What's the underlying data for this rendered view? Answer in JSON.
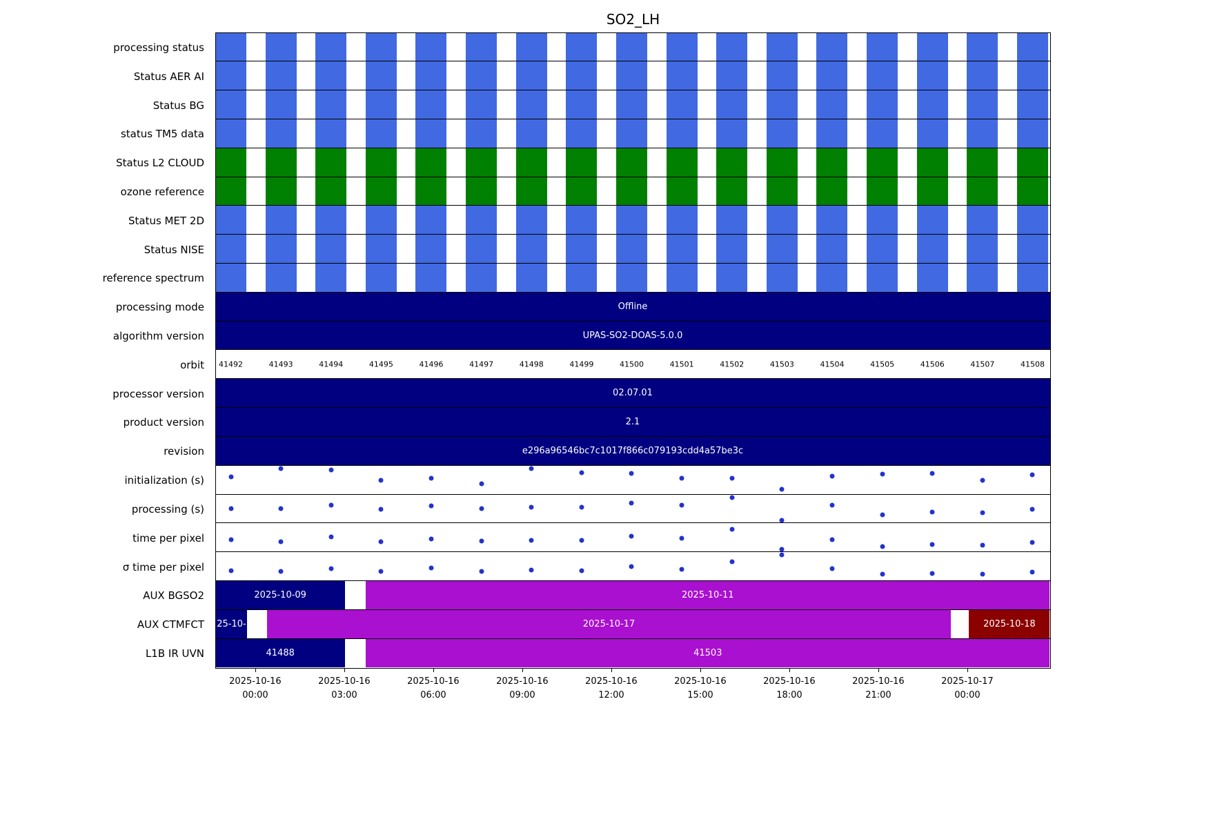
{
  "title": "SO2_LH",
  "colors": {
    "blue": "#4169e1",
    "green": "#008000",
    "navy": "#000080",
    "magenta": "#aa10d0",
    "darkred": "#8b0000",
    "dot": "#2333cc"
  },
  "chart_data": {
    "type": "heatmap",
    "title": "SO2_LH",
    "orbits": [
      41492,
      41493,
      41494,
      41495,
      41496,
      41497,
      41498,
      41499,
      41500,
      41501,
      41502,
      41503,
      41504,
      41505,
      41506,
      41507,
      41508
    ],
    "x_ticks": [
      {
        "date": "2025-10-16",
        "time": "00:00"
      },
      {
        "date": "2025-10-16",
        "time": "03:00"
      },
      {
        "date": "2025-10-16",
        "time": "06:00"
      },
      {
        "date": "2025-10-16",
        "time": "09:00"
      },
      {
        "date": "2025-10-16",
        "time": "12:00"
      },
      {
        "date": "2025-10-16",
        "time": "15:00"
      },
      {
        "date": "2025-10-16",
        "time": "18:00"
      },
      {
        "date": "2025-10-16",
        "time": "21:00"
      },
      {
        "date": "2025-10-17",
        "time": "00:00"
      }
    ],
    "rows": [
      {
        "label": "processing status",
        "kind": "blocks",
        "color": "blue"
      },
      {
        "label": "Status AER AI",
        "kind": "blocks",
        "color": "blue"
      },
      {
        "label": "Status BG",
        "kind": "blocks",
        "color": "blue"
      },
      {
        "label": "status TM5 data",
        "kind": "blocks",
        "color": "blue"
      },
      {
        "label": "Status L2  CLOUD",
        "kind": "blocks",
        "color": "green"
      },
      {
        "label": "ozone reference",
        "kind": "blocks",
        "color": "green"
      },
      {
        "label": "Status MET 2D",
        "kind": "blocks",
        "color": "blue"
      },
      {
        "label": "Status NISE",
        "kind": "blocks",
        "color": "blue"
      },
      {
        "label": "reference spectrum",
        "kind": "blocks",
        "color": "blue"
      },
      {
        "label": "processing mode",
        "kind": "fullbar",
        "color": "navy",
        "text": "Offline"
      },
      {
        "label": "algorithm version",
        "kind": "fullbar",
        "color": "navy",
        "text": "UPAS-SO2-DOAS-5.0.0"
      },
      {
        "label": "orbit",
        "kind": "orbit-labels"
      },
      {
        "label": "processor version",
        "kind": "fullbar",
        "color": "navy",
        "text": "02.07.01"
      },
      {
        "label": "product version",
        "kind": "fullbar",
        "color": "navy",
        "text": "2.1"
      },
      {
        "label": "revision",
        "kind": "fullbar",
        "color": "navy",
        "text": "e296a96546bc7c1017f866c079193cdd4a57be3c"
      },
      {
        "label": "initialization (s)",
        "kind": "scatter",
        "values": [
          0.4,
          0.08,
          0.15,
          0.5,
          0.43,
          0.64,
          0.1,
          0.25,
          0.27,
          0.43,
          0.43,
          0.83,
          0.36,
          0.29,
          0.27,
          0.52,
          0.33
        ]
      },
      {
        "label": "processing (s)",
        "kind": "scatter",
        "values": [
          0.48,
          0.5,
          0.38,
          0.52,
          0.4,
          0.48,
          0.45,
          0.45,
          0.29,
          0.36,
          0.1,
          0.93,
          0.36,
          0.71,
          0.6,
          0.64,
          0.52
        ]
      },
      {
        "label": "time per pixel",
        "kind": "scatter",
        "values": [
          0.57,
          0.64,
          0.48,
          0.64,
          0.55,
          0.62,
          0.6,
          0.6,
          0.45,
          0.52,
          0.21,
          0.95,
          0.57,
          0.81,
          0.74,
          0.76,
          0.67
        ]
      },
      {
        "label": "σ time per pixel",
        "kind": "scatter",
        "values": [
          0.64,
          0.67,
          0.57,
          0.67,
          0.55,
          0.67,
          0.62,
          0.64,
          0.5,
          0.6,
          0.33,
          0.05,
          0.57,
          0.76,
          0.74,
          0.76,
          0.69
        ]
      },
      {
        "label": "AUX BGSO2",
        "kind": "segments",
        "segments": [
          {
            "start": 0,
            "end": 0.155,
            "color": "navy",
            "text": "2025-10-09"
          },
          {
            "start": 0.18,
            "end": 1,
            "color": "magenta",
            "text": "2025-10-11"
          }
        ]
      },
      {
        "label": "AUX CTMFCT",
        "kind": "segments",
        "segments": [
          {
            "start": 0,
            "end": 0.038,
            "color": "navy",
            "text": "25-10-"
          },
          {
            "start": 0.062,
            "end": 0.881,
            "color": "magenta",
            "text": "2025-10-17"
          },
          {
            "start": 0.903,
            "end": 1,
            "color": "darkred",
            "text": "2025-10-18"
          }
        ]
      },
      {
        "label": "L1B IR UVN",
        "kind": "segments",
        "segments": [
          {
            "start": 0,
            "end": 0.155,
            "color": "navy",
            "text": "41488"
          },
          {
            "start": 0.18,
            "end": 1,
            "color": "magenta",
            "text": "41503"
          }
        ]
      }
    ]
  }
}
